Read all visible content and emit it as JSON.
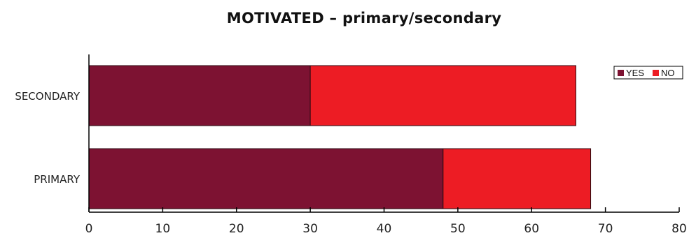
{
  "chart_data": {
    "type": "bar",
    "orientation": "horizontal",
    "stacked": true,
    "title": "MOTIVATED – primary/secondary",
    "xlabel": "",
    "ylabel": "",
    "categories": [
      "SECONDARY",
      "PRIMARY"
    ],
    "series": [
      {
        "name": "YES",
        "color": "#7d1232",
        "values": [
          30,
          48
        ]
      },
      {
        "name": "NO",
        "color": "#ed1c24",
        "values": [
          36,
          20
        ]
      }
    ],
    "xlim": [
      0,
      80
    ],
    "xticks": [
      "0",
      "10",
      "20",
      "30",
      "40",
      "50",
      "60",
      "70",
      "80"
    ],
    "grid": false,
    "legend": "top-right"
  }
}
